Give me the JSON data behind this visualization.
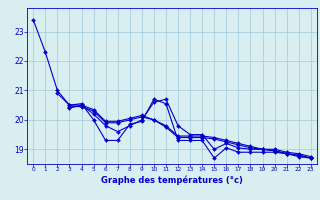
{
  "title": "Graphe des températures (°c)",
  "bg_color": "#d8eef0",
  "grid_color": "#a0c8d8",
  "line_color": "#0000cc",
  "xlim": [
    -0.5,
    23.5
  ],
  "ylim": [
    18.5,
    23.8
  ],
  "yticks": [
    19,
    20,
    21,
    22,
    23
  ],
  "xticks": [
    0,
    1,
    2,
    3,
    4,
    5,
    6,
    7,
    8,
    9,
    10,
    11,
    12,
    13,
    14,
    15,
    16,
    17,
    18,
    19,
    20,
    21,
    22,
    23
  ],
  "line1": [
    23.4,
    22.3,
    21.0,
    20.5,
    20.5,
    20.2,
    19.8,
    19.6,
    19.8,
    20.0,
    20.6,
    20.7,
    19.8,
    19.5,
    19.5,
    19.0,
    19.2,
    19.05,
    19.0,
    19.0,
    18.95,
    18.85,
    18.8,
    18.7
  ],
  "line2": [
    null,
    null,
    20.9,
    20.5,
    20.55,
    20.0,
    19.3,
    19.3,
    19.85,
    19.95,
    20.7,
    20.55,
    19.3,
    19.3,
    19.3,
    18.7,
    19.05,
    18.9,
    18.9,
    18.9,
    18.9,
    18.85,
    18.75,
    18.7
  ],
  "line3": [
    null,
    null,
    null,
    20.45,
    20.45,
    20.3,
    19.9,
    19.9,
    20.0,
    20.1,
    20.0,
    19.8,
    19.45,
    19.45,
    19.45,
    19.4,
    19.3,
    19.2,
    19.1,
    19.0,
    19.0,
    18.9,
    18.85,
    18.75
  ],
  "line4": [
    null,
    null,
    null,
    20.4,
    20.5,
    20.35,
    19.95,
    19.95,
    20.05,
    20.15,
    20.0,
    19.75,
    19.4,
    19.4,
    19.4,
    19.35,
    19.25,
    19.15,
    19.05,
    19.0,
    18.95,
    18.85,
    18.8,
    18.7
  ]
}
